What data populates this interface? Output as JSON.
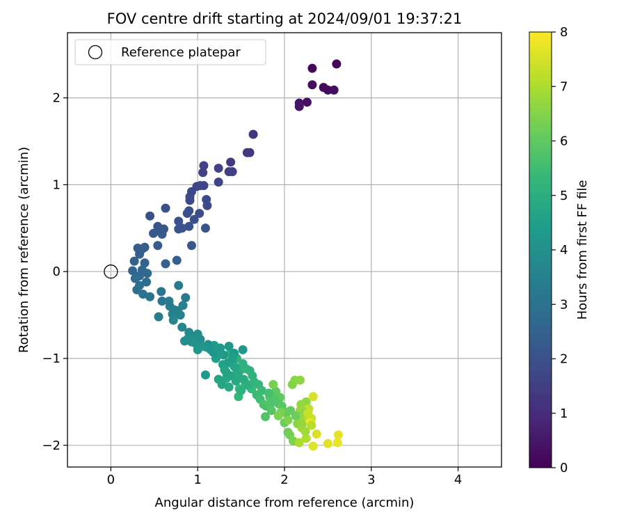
{
  "chart_data": {
    "type": "scatter",
    "title": "FOV centre drift starting at 2024/09/01 19:37:21",
    "xlabel": "Angular distance from reference (arcmin)",
    "ylabel": "Rotation from reference (arcmin)",
    "xlim": [
      -0.5,
      4.5
    ],
    "ylim": [
      -2.25,
      2.75
    ],
    "xticks": [
      0,
      1,
      2,
      3,
      4
    ],
    "yticks": [
      -2,
      -1,
      0,
      1,
      2
    ],
    "grid": true,
    "legend": {
      "placement": "top-left",
      "entries": [
        {
          "label": "Reference platepar",
          "marker": "open-circle"
        }
      ]
    },
    "reference_point": {
      "x": 0,
      "y": 0
    },
    "colorbar": {
      "label": "Hours from first FF file",
      "range": [
        0,
        8
      ],
      "ticks": [
        0,
        1,
        2,
        3,
        4,
        5,
        6,
        7,
        8
      ],
      "colormap": "viridis"
    },
    "points": [
      [
        2.6,
        2.39,
        0.1
      ],
      [
        2.32,
        2.34,
        0.15
      ],
      [
        2.45,
        2.12,
        0.2
      ],
      [
        2.5,
        2.09,
        0.25
      ],
      [
        2.57,
        2.09,
        0.3
      ],
      [
        2.32,
        2.15,
        0.3
      ],
      [
        2.26,
        1.95,
        0.35
      ],
      [
        2.17,
        1.94,
        0.4
      ],
      [
        2.17,
        1.9,
        0.45
      ],
      [
        1.64,
        1.58,
        1.2
      ],
      [
        1.6,
        1.37,
        1.3
      ],
      [
        1.57,
        1.37,
        1.35
      ],
      [
        1.38,
        1.26,
        1.4
      ],
      [
        1.4,
        1.15,
        1.45
      ],
      [
        1.36,
        1.15,
        1.5
      ],
      [
        1.24,
        1.19,
        1.55
      ],
      [
        1.07,
        1.22,
        1.6
      ],
      [
        1.06,
        1.14,
        1.6
      ],
      [
        1.24,
        1.03,
        1.65
      ],
      [
        1.07,
        0.99,
        1.7
      ],
      [
        1.03,
        0.99,
        1.7
      ],
      [
        0.99,
        0.98,
        1.75
      ],
      [
        0.93,
        0.92,
        1.75
      ],
      [
        0.91,
        0.86,
        1.8
      ],
      [
        0.91,
        0.82,
        1.8
      ],
      [
        1.1,
        0.83,
        1.85
      ],
      [
        1.11,
        0.76,
        1.85
      ],
      [
        1.02,
        0.67,
        1.9
      ],
      [
        0.9,
        0.7,
        1.9
      ],
      [
        0.88,
        0.67,
        1.95
      ],
      [
        0.96,
        0.6,
        1.95
      ],
      [
        0.63,
        0.73,
        2.0
      ],
      [
        0.45,
        0.64,
        2.0
      ],
      [
        0.78,
        0.58,
        2.05
      ],
      [
        0.9,
        0.52,
        2.05
      ],
      [
        0.82,
        0.5,
        2.1
      ],
      [
        0.78,
        0.49,
        2.1
      ],
      [
        1.09,
        0.5,
        2.1
      ],
      [
        0.61,
        0.49,
        2.15
      ],
      [
        0.54,
        0.52,
        2.15
      ],
      [
        0.57,
        0.46,
        2.2
      ],
      [
        0.49,
        0.44,
        2.2
      ],
      [
        0.59,
        0.43,
        2.25
      ],
      [
        0.93,
        0.3,
        2.25
      ],
      [
        0.54,
        0.3,
        2.3
      ],
      [
        0.39,
        0.28,
        2.3
      ],
      [
        0.36,
        0.26,
        2.35
      ],
      [
        0.31,
        0.27,
        2.35
      ],
      [
        0.33,
        0.2,
        2.4
      ],
      [
        0.76,
        0.13,
        2.4
      ],
      [
        0.63,
        0.09,
        2.45
      ],
      [
        0.27,
        0.12,
        2.45
      ],
      [
        0.39,
        0.1,
        2.5
      ],
      [
        0.25,
        0.01,
        2.6
      ],
      [
        0.36,
        0.02,
        2.65
      ],
      [
        0.42,
        -0.02,
        2.7
      ],
      [
        0.33,
        -0.05,
        2.75
      ],
      [
        0.28,
        -0.08,
        2.8
      ],
      [
        0.41,
        -0.12,
        2.85
      ],
      [
        0.33,
        -0.16,
        2.9
      ],
      [
        0.3,
        -0.21,
        2.95
      ],
      [
        0.37,
        -0.26,
        3.0
      ],
      [
        0.45,
        -0.29,
        3.05
      ],
      [
        0.58,
        -0.23,
        3.1
      ],
      [
        0.59,
        -0.34,
        3.15
      ],
      [
        0.78,
        -0.16,
        3.2
      ],
      [
        0.86,
        -0.3,
        3.25
      ],
      [
        0.55,
        -0.52,
        3.3
      ],
      [
        0.68,
        -0.4,
        3.4
      ],
      [
        0.77,
        -0.45,
        3.5
      ],
      [
        0.71,
        -0.49,
        3.55
      ],
      [
        0.8,
        -0.5,
        3.6
      ],
      [
        0.72,
        -0.56,
        3.65
      ],
      [
        0.82,
        -0.64,
        3.7
      ],
      [
        0.9,
        -0.7,
        3.8
      ],
      [
        0.97,
        -0.75,
        3.85
      ],
      [
        0.89,
        -0.77,
        3.9
      ],
      [
        0.85,
        -0.8,
        3.95
      ],
      [
        0.93,
        -0.81,
        4.0
      ],
      [
        0.98,
        -0.83,
        4.1
      ],
      [
        1.05,
        -0.86,
        4.15
      ],
      [
        1.0,
        -0.9,
        4.2
      ],
      [
        1.1,
        -0.87,
        4.25
      ],
      [
        1.09,
        -1.19,
        4.3
      ],
      [
        1.19,
        -0.85,
        4.35
      ],
      [
        1.25,
        -0.9,
        4.4
      ],
      [
        1.21,
        -1.0,
        4.5
      ],
      [
        1.29,
        -1.07,
        4.6
      ],
      [
        1.31,
        -1.13,
        4.65
      ],
      [
        1.28,
        -1.3,
        4.7
      ],
      [
        1.36,
        -1.33,
        4.8
      ],
      [
        1.33,
        -1.23,
        4.85
      ],
      [
        1.45,
        -1.18,
        4.9
      ],
      [
        1.48,
        -1.15,
        4.95
      ],
      [
        1.38,
        -0.94,
        5.0
      ],
      [
        1.45,
        -1.0,
        5.05
      ],
      [
        1.52,
        -1.06,
        5.1
      ],
      [
        1.56,
        -1.12,
        5.15
      ],
      [
        1.63,
        -1.2,
        5.2
      ],
      [
        1.55,
        -1.28,
        5.25
      ],
      [
        1.48,
        -1.35,
        5.3
      ],
      [
        1.47,
        -1.44,
        5.35
      ],
      [
        1.62,
        -1.35,
        5.4
      ],
      [
        1.68,
        -1.42,
        5.45
      ],
      [
        1.72,
        -1.47,
        5.5
      ],
      [
        1.79,
        -1.55,
        5.6
      ],
      [
        1.76,
        -1.53,
        5.7
      ],
      [
        1.84,
        -1.52,
        5.75
      ],
      [
        1.78,
        -1.67,
        5.8
      ],
      [
        1.85,
        -1.6,
        5.85
      ],
      [
        1.83,
        -1.45,
        5.9
      ],
      [
        1.9,
        -1.38,
        5.95
      ],
      [
        1.95,
        -1.45,
        6.0
      ],
      [
        1.98,
        -1.6,
        6.1
      ],
      [
        2.0,
        -1.74,
        6.15
      ],
      [
        2.04,
        -1.85,
        6.2
      ],
      [
        2.06,
        -1.88,
        6.3
      ],
      [
        2.1,
        -1.95,
        6.4
      ],
      [
        2.09,
        -1.3,
        6.5
      ],
      [
        2.12,
        -1.25,
        6.55
      ],
      [
        2.18,
        -1.25,
        6.6
      ],
      [
        2.25,
        -1.5,
        6.65
      ],
      [
        2.19,
        -1.53,
        6.7
      ],
      [
        2.18,
        -1.6,
        6.75
      ],
      [
        2.21,
        -1.7,
        6.8
      ],
      [
        2.2,
        -1.8,
        6.9
      ],
      [
        2.17,
        -1.97,
        7.0
      ],
      [
        2.25,
        -1.92,
        7.05
      ],
      [
        2.27,
        -1.67,
        7.1
      ],
      [
        2.3,
        -1.72,
        7.2
      ],
      [
        2.28,
        -1.58,
        7.3
      ],
      [
        2.31,
        -1.69,
        7.4
      ],
      [
        2.33,
        -1.44,
        7.5
      ],
      [
        2.37,
        -1.87,
        7.55
      ],
      [
        2.33,
        -2.01,
        7.6
      ],
      [
        2.5,
        -1.98,
        7.65
      ],
      [
        2.62,
        -1.88,
        7.7
      ],
      [
        2.61,
        -1.97,
        7.75
      ],
      [
        2.29,
        -1.74,
        7.8
      ],
      [
        1.36,
        -0.86,
        4.2
      ],
      [
        1.42,
        -0.94,
        4.3
      ],
      [
        1.52,
        -0.9,
        4.3
      ],
      [
        1.3,
        -0.96,
        4.35
      ],
      [
        1.22,
        -0.96,
        4.4
      ],
      [
        1.4,
        -1.0,
        4.45
      ],
      [
        1.35,
        -1.05,
        4.5
      ],
      [
        1.42,
        -1.09,
        4.55
      ],
      [
        1.33,
        -1.16,
        4.6
      ],
      [
        1.39,
        -1.2,
        4.65
      ],
      [
        1.24,
        -1.24,
        4.7
      ],
      [
        1.44,
        -1.26,
        4.75
      ],
      [
        1.53,
        -1.24,
        4.9
      ],
      [
        1.58,
        -1.31,
        5.0
      ],
      [
        1.5,
        -1.37,
        5.1
      ],
      [
        1.65,
        -1.27,
        5.2
      ],
      [
        1.7,
        -1.3,
        5.3
      ],
      [
        1.74,
        -1.37,
        5.45
      ],
      [
        1.82,
        -1.4,
        5.6
      ],
      [
        1.88,
        -1.47,
        5.75
      ],
      [
        1.93,
        -1.52,
        5.8
      ],
      [
        1.97,
        -1.55,
        5.9
      ],
      [
        2.02,
        -1.63,
        6.0
      ],
      [
        2.07,
        -1.6,
        6.1
      ],
      [
        2.13,
        -1.66,
        6.2
      ],
      [
        1.87,
        -1.3,
        6.3
      ],
      [
        1.96,
        -1.62,
        6.35
      ],
      [
        1.93,
        -1.66,
        6.4
      ],
      [
        2.04,
        -1.71,
        6.45
      ],
      [
        2.15,
        -1.75,
        6.55
      ],
      [
        2.23,
        -1.62,
        6.6
      ],
      [
        2.2,
        -1.76,
        6.7
      ],
      [
        2.24,
        -1.84,
        6.85
      ],
      [
        2.31,
        -1.77,
        7.15
      ],
      [
        2.27,
        -1.63,
        7.35
      ],
      [
        0.83,
        -0.39,
        3.5
      ],
      [
        0.67,
        -0.34,
        3.3
      ],
      [
        0.73,
        -0.44,
        3.45
      ],
      [
        1.0,
        -0.72,
        3.9
      ],
      [
        1.03,
        -0.78,
        3.95
      ],
      [
        1.12,
        -0.84,
        4.1
      ],
      [
        1.15,
        -0.9,
        4.15
      ],
      [
        1.18,
        -0.93,
        4.2
      ],
      [
        1.26,
        -0.88,
        4.25
      ],
      [
        1.43,
        -1.1,
        4.7
      ],
      [
        1.46,
        -1.2,
        4.8
      ],
      [
        1.6,
        -1.14,
        5.1
      ]
    ]
  }
}
